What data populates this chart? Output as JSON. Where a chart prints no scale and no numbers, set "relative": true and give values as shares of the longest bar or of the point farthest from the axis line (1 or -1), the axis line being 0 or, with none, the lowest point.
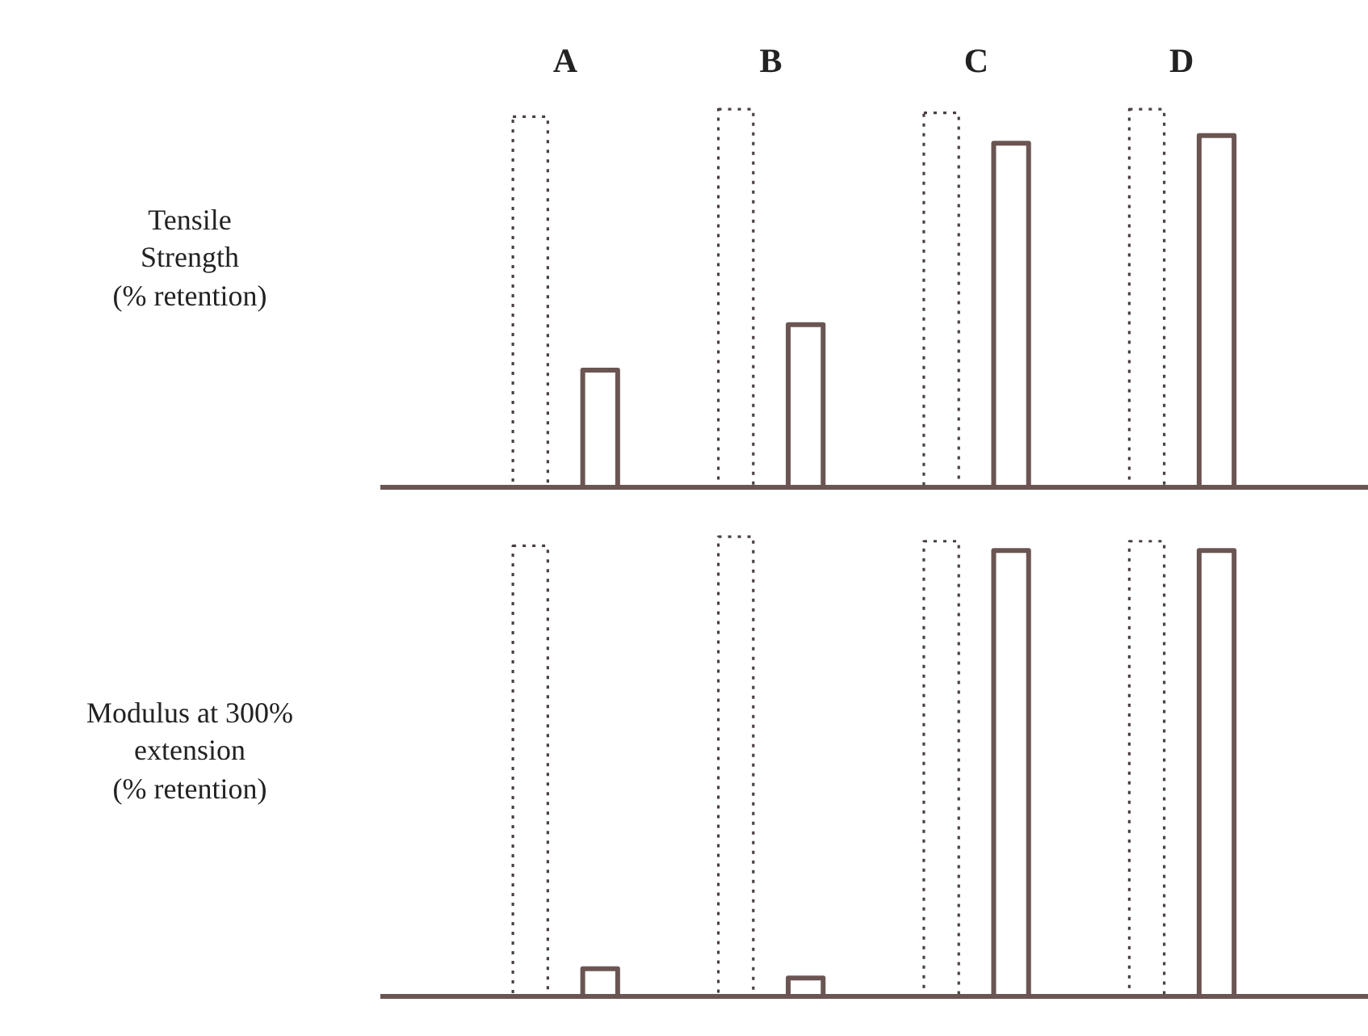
{
  "chart_data": [
    {
      "type": "bar",
      "relative": true,
      "ylabel": "Tensile\nStrength\n(% retention)",
      "categories": [
        "A",
        "B",
        "C",
        "D"
      ],
      "tick_labels": "x",
      "series": [
        {
          "color": "#4a4040",
          "line_style": "dotted",
          "values": [
            0.98,
            1,
            0.99,
            1
          ]
        },
        {
          "color": "#6b5552",
          "line_style": "solid",
          "values": [
            0.31,
            0.43,
            0.91,
            0.93
          ]
        }
      ]
    },
    {
      "type": "bar",
      "relative": true,
      "ylabel": "Modulus at 300%\nextension\n(% retention)",
      "categories": [
        null,
        null,
        null,
        null
      ],
      "tick_labels": false,
      "series": [
        {
          "color": "#4a4040",
          "line_style": "dotted",
          "values": [
            0.98,
            1,
            0.99,
            0.99
          ]
        },
        {
          "color": "#6b5552",
          "line_style": "solid",
          "values": [
            0.06,
            0.04,
            0.97,
            0.97
          ]
        }
      ]
    }
  ]
}
